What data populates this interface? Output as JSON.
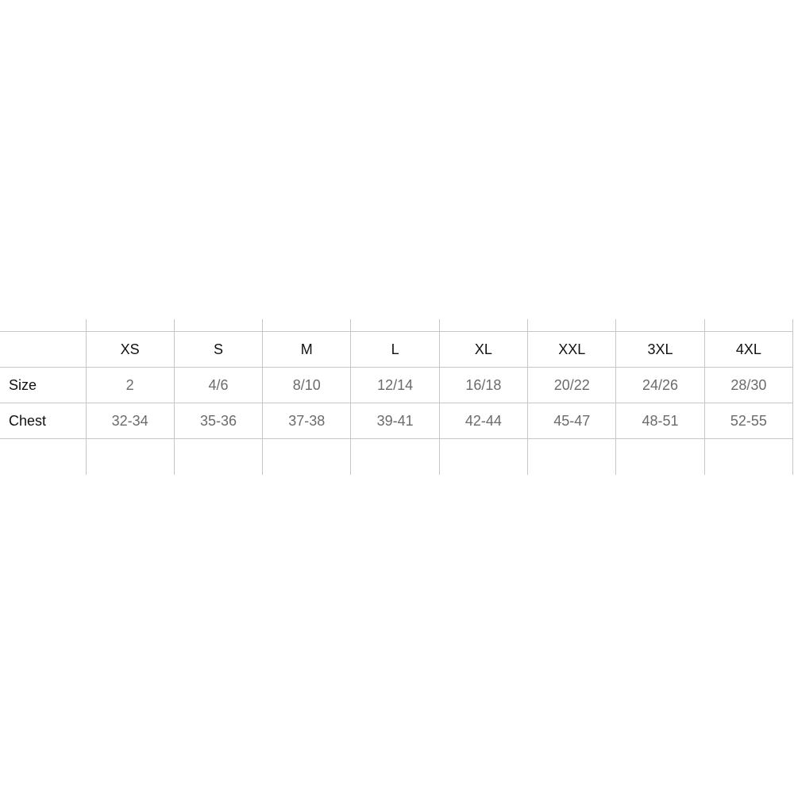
{
  "size_chart": {
    "columns": [
      "XS",
      "S",
      "M",
      "L",
      "XL",
      "XXL",
      "3XL",
      "4XL"
    ],
    "rows": [
      {
        "label": "Size",
        "values": [
          "2",
          "4/6",
          "8/10",
          "12/14",
          "16/18",
          "20/22",
          "24/26",
          "28/30"
        ]
      },
      {
        "label": "Chest",
        "values": [
          "32-34",
          "35-36",
          "37-38",
          "39-41",
          "42-44",
          "45-47",
          "48-51",
          "52-55"
        ]
      }
    ],
    "colors": {
      "line": "#c6c6c6",
      "header_text": "#111111",
      "value_text": "#6b6b6b"
    }
  }
}
